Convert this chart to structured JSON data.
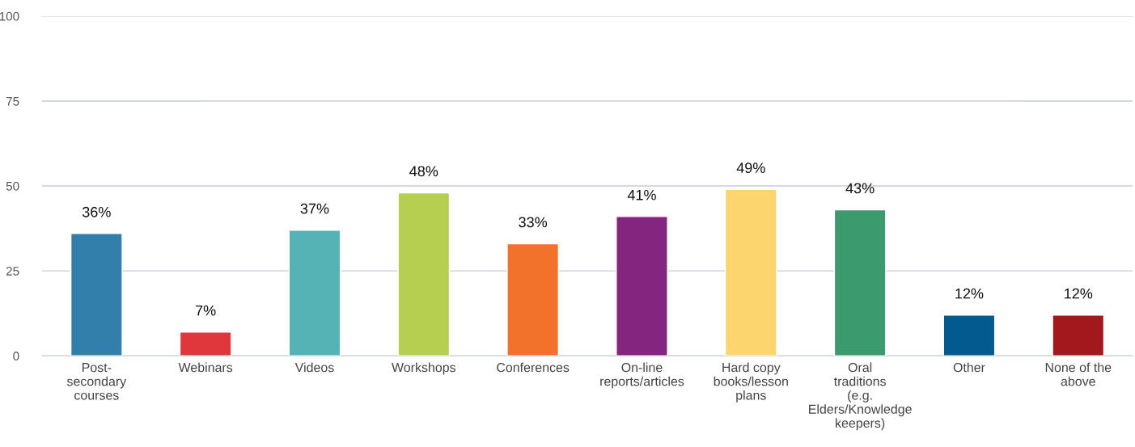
{
  "chart_data": {
    "type": "bar",
    "categories": [
      "Post-\nsecondary\ncourses",
      "Webinars",
      "Videos",
      "Workshops",
      "Conferences",
      "On-line\nreports/articles",
      "Hard copy\nbooks/lesson\nplans",
      "Oral\ntraditions\n(e.g.\nElders/Knowledge\nkeepers)",
      "Other",
      "None of the\nabove"
    ],
    "values": [
      36,
      7,
      37,
      48,
      33,
      41,
      49,
      43,
      12,
      12
    ],
    "colors": [
      "#337fab",
      "#e0373c",
      "#55b3b5",
      "#b7cf50",
      "#f2722b",
      "#84267f",
      "#fdd56e",
      "#3b9a6e",
      "#035a8f",
      "#a2181c"
    ],
    "value_labels": [
      "36%",
      "7%",
      "37%",
      "48%",
      "33%",
      "41%",
      "49%",
      "43%",
      "12%",
      "12%"
    ],
    "ylim": [
      0,
      100
    ],
    "yticks": [
      0,
      25,
      50,
      75,
      100
    ],
    "grid": "y"
  }
}
